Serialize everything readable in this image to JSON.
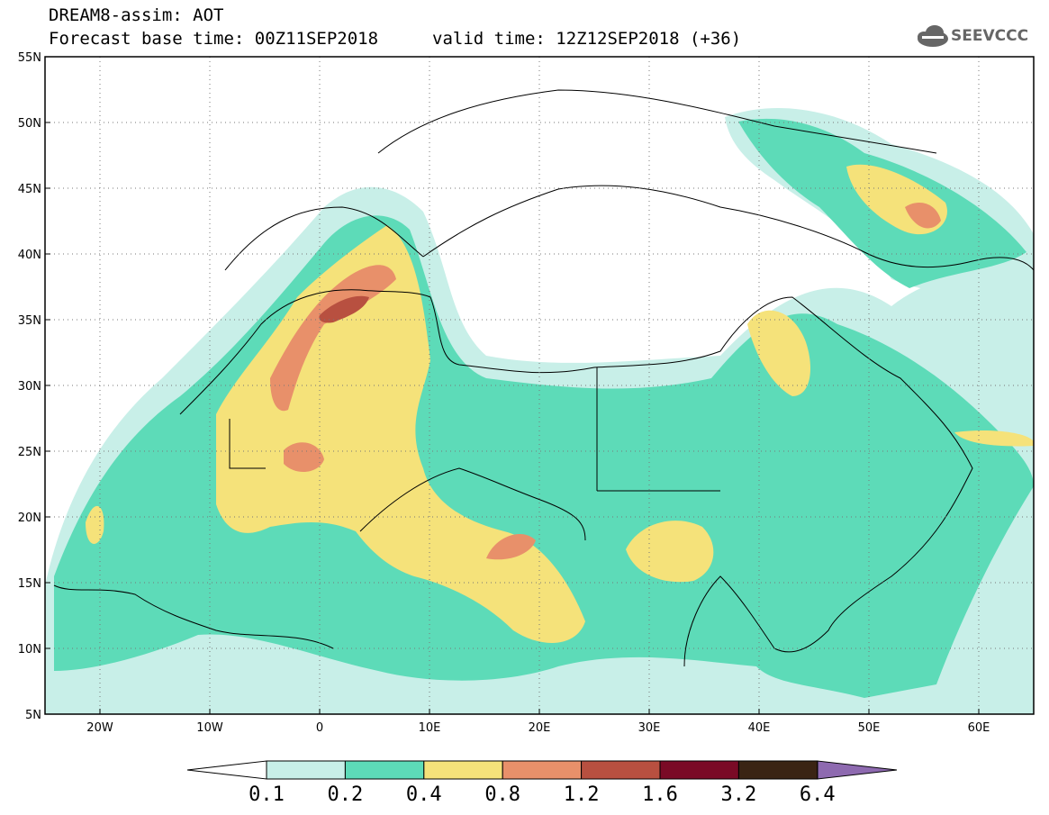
{
  "title": {
    "line1": "DREAM8-assim: AOT",
    "line2": "Forecast base time: 00Z11SEP2018",
    "valid": "valid time: 12Z12SEP2018 (+36)"
  },
  "logo": {
    "icon": "cloud-icon",
    "text": "SEEVCCC"
  },
  "map": {
    "lon_range": [
      -25,
      65
    ],
    "lat_range": [
      5,
      55
    ],
    "lat_ticks": [
      "5N",
      "10N",
      "15N",
      "20N",
      "25N",
      "30N",
      "35N",
      "40N",
      "45N",
      "50N",
      "55N"
    ],
    "lon_ticks": [
      "20W",
      "10W",
      "0",
      "10E",
      "20E",
      "30E",
      "40E",
      "50E",
      "60E"
    ],
    "grid": "dotted"
  },
  "colorbar": {
    "labels": [
      "0.1",
      "0.2",
      "0.4",
      "0.8",
      "1.2",
      "1.6",
      "3.2",
      "6.4"
    ],
    "colors": [
      "#c8efe8",
      "#5ddbb8",
      "#f5e27a",
      "#e8906a",
      "#b85040",
      "#7a0a26",
      "#3a2414",
      "#8e6ab0"
    ],
    "under_color": "#ffffff"
  }
}
